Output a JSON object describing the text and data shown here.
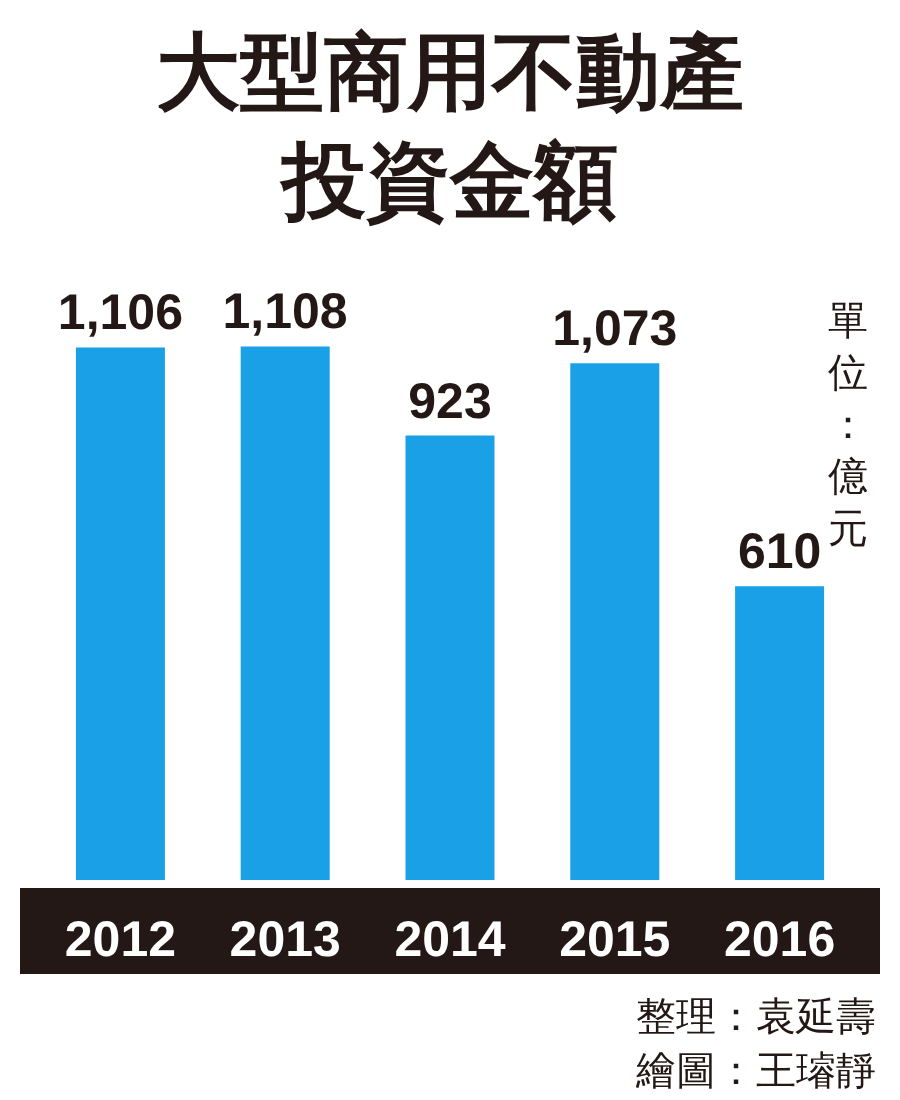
{
  "chart_data": {
    "type": "bar",
    "title": "大型商用不動產投資金額",
    "ylabel": "單位：億元",
    "categories": [
      "2012",
      "2013",
      "2014",
      "2015",
      "2016"
    ],
    "values": [
      1106,
      1108,
      923,
      1073,
      610
    ],
    "color": "#1aa0e6",
    "value_labels": [
      "1,106",
      "1,108",
      "923",
      "1,073",
      "610"
    ],
    "annotations": [
      "整理：袁延壽",
      "繪圖：王璿靜"
    ]
  }
}
